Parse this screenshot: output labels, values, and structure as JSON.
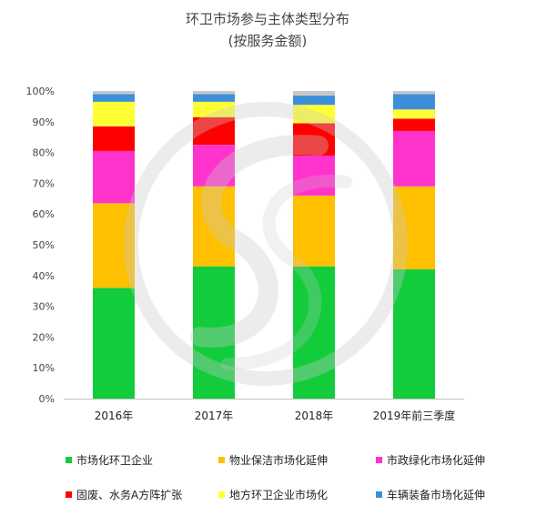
{
  "chart_data": {
    "type": "bar",
    "stacked": true,
    "title": "环卫市场参与主体类型分布",
    "subtitle": "(按服务金额)",
    "categories": [
      "2016年",
      "2017年",
      "2018年",
      "2019年前三季度"
    ],
    "y_ticks": [
      "0%",
      "10%",
      "20%",
      "30%",
      "40%",
      "50%",
      "60%",
      "70%",
      "80%",
      "90%",
      "100%"
    ],
    "ylim": [
      0,
      100
    ],
    "legend_position": "bottom",
    "series": [
      {
        "name": "市场化环卫企业",
        "color": "#12CC3C",
        "values": [
          36,
          43,
          43,
          42
        ]
      },
      {
        "name": "物业保洁市场化延伸",
        "color": "#FFC000",
        "values": [
          27.5,
          26,
          23,
          27
        ]
      },
      {
        "name": "市政绿化市场化延伸",
        "color": "#FF33CC",
        "values": [
          17,
          13.5,
          13,
          18
        ]
      },
      {
        "name": "固废、水务A方阵扩张",
        "color": "#FF0000",
        "values": [
          8,
          9,
          10.5,
          4
        ]
      },
      {
        "name": "地方环卫企业市场化",
        "color": "#FFFF33",
        "values": [
          8,
          5,
          6,
          3
        ]
      },
      {
        "name": "车辆装备市场化延伸",
        "color": "#3D8FD9",
        "values": [
          2.5,
          2.5,
          3,
          5
        ]
      },
      {
        "name": "",
        "color": "#C8C8C8",
        "values": [
          1,
          1,
          1.5,
          1
        ]
      }
    ]
  }
}
